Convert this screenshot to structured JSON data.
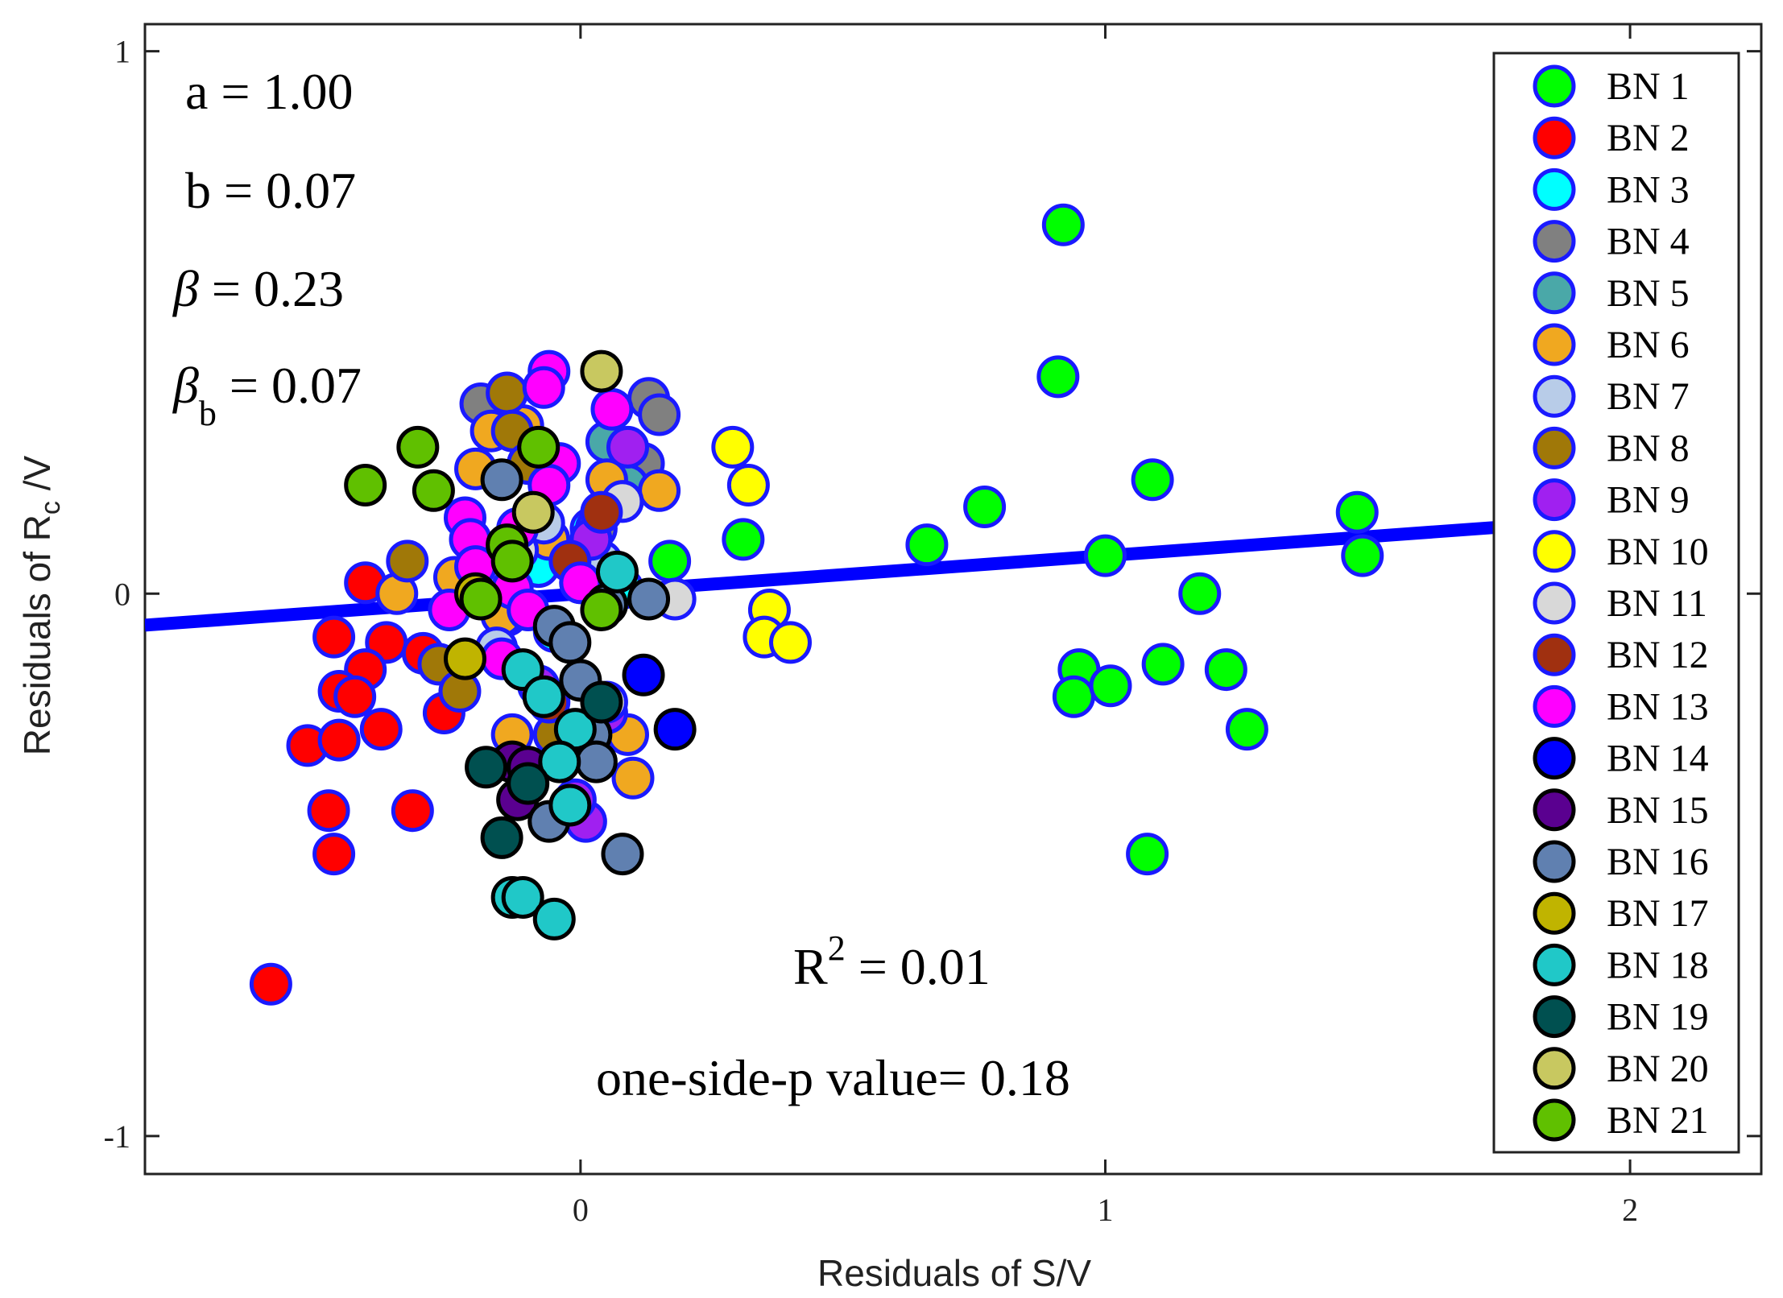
{
  "chart_data": {
    "type": "scatter",
    "xlabel": "Residuals of S/V",
    "ylabel_main": "Residuals of R",
    "ylabel_sub": "c",
    "ylabel_tail": " /V",
    "xlim": [
      -0.83,
      2.25
    ],
    "ylim": [
      -1.07,
      1.05
    ],
    "xticks": [
      0,
      1,
      2
    ],
    "xtick_labels": [
      "0",
      "1",
      "2"
    ],
    "yticks": [
      -1,
      0,
      1
    ],
    "ytick_labels": [
      "-1",
      "0",
      "1"
    ],
    "fit_line": {
      "slope": 0.07,
      "intercept": 0.0,
      "color": "#0000ff"
    },
    "annotations": {
      "a": "a = 1.00",
      "b": "b = 0.07",
      "beta_symbol": "β",
      "beta_value": " = 0.23",
      "beta_b_symbol": "β",
      "beta_b_sub": "b",
      "beta_b_value": " = 0.07",
      "r2_main": "R",
      "r2_sup": "2",
      "r2_value": " = 0.01",
      "pvalue": "one-side-p value= 0.18"
    },
    "legend_position": "right",
    "series": [
      {
        "name": "BN 1",
        "color": "#00ff00",
        "edge": "#1a1aff",
        "x": [
          0.92,
          0.91,
          1.09,
          0.77,
          0.66,
          0.31,
          1.48,
          1.49,
          1.0,
          1.18,
          0.17,
          0.95,
          0.94,
          1.01,
          1.11,
          1.23,
          1.27,
          1.08
        ],
        "y": [
          0.68,
          0.4,
          0.21,
          0.16,
          0.09,
          0.1,
          0.15,
          0.07,
          0.07,
          0.0,
          0.06,
          -0.14,
          -0.19,
          -0.17,
          -0.13,
          -0.14,
          -0.25,
          -0.48
        ]
      },
      {
        "name": "BN 2",
        "color": "#ff0000",
        "edge": "#1a1aff",
        "x": [
          -0.41,
          -0.47,
          -0.37,
          -0.41,
          -0.46,
          -0.43,
          -0.52,
          -0.46,
          -0.38,
          -0.3,
          -0.26,
          -0.48,
          -0.47,
          -0.32,
          -0.59
        ],
        "y": [
          0.02,
          -0.08,
          -0.09,
          -0.14,
          -0.18,
          -0.19,
          -0.28,
          -0.27,
          -0.25,
          -0.11,
          -0.22,
          -0.4,
          -0.48,
          -0.4,
          -0.72
        ]
      },
      {
        "name": "BN 3",
        "color": "#00ffff",
        "edge": "#1a1aff",
        "x": [
          -0.08,
          -0.05,
          0.02,
          -0.12,
          0.08
        ],
        "y": [
          0.05,
          -0.07,
          0.12,
          -0.02,
          0.01
        ]
      },
      {
        "name": "BN 4",
        "color": "#808080",
        "edge": "#1a1aff",
        "x": [
          -0.19,
          0.13,
          0.15,
          -0.06,
          0.12,
          0.03
        ],
        "y": [
          0.35,
          0.36,
          0.33,
          0.23,
          0.24,
          0.12
        ]
      },
      {
        "name": "BN 5",
        "color": "#4aa8a8",
        "edge": "#1a1aff",
        "x": [
          0.05,
          0.09,
          -0.1,
          0.0,
          -0.14
        ],
        "y": [
          0.28,
          0.2,
          0.12,
          0.02,
          -0.04
        ]
      },
      {
        "name": "BN 6",
        "color": "#f0a820",
        "edge": "#1a1aff",
        "x": [
          -0.17,
          -0.2,
          -0.11,
          0.05,
          0.08,
          0.15,
          -0.35,
          -0.24,
          -0.06,
          0.02,
          -0.15,
          -0.13,
          0.09,
          0.1
        ],
        "y": [
          0.3,
          0.23,
          0.31,
          0.21,
          0.17,
          0.19,
          0.0,
          0.03,
          0.1,
          0.02,
          -0.04,
          -0.26,
          -0.26,
          -0.34
        ]
      },
      {
        "name": "BN 7",
        "color": "#b8cce8",
        "edge": "#1a1aff",
        "x": [
          -0.07,
          0.04,
          -0.16
        ],
        "y": [
          0.13,
          0.06,
          -0.1
        ]
      },
      {
        "name": "BN 8",
        "color": "#a07808",
        "edge": "#1a1aff",
        "x": [
          -0.14,
          -0.13,
          -0.33,
          -0.1,
          -0.27,
          -0.23,
          -0.05
        ],
        "y": [
          0.37,
          0.3,
          0.06,
          0.24,
          -0.13,
          -0.18,
          -0.26
        ]
      },
      {
        "name": "BN 9",
        "color": "#a020f0",
        "edge": "#1a1aff",
        "x": [
          0.09,
          0.02,
          -0.08,
          0.05,
          0.01,
          -0.01
        ],
        "y": [
          0.27,
          0.1,
          -0.17,
          -0.22,
          -0.42,
          -0.38
        ]
      },
      {
        "name": "BN 10",
        "color": "#ffff00",
        "edge": "#1a1aff",
        "x": [
          0.29,
          0.32,
          0.36,
          0.35,
          0.4
        ],
        "y": [
          0.27,
          0.2,
          -0.03,
          -0.08,
          -0.09
        ]
      },
      {
        "name": "BN 11",
        "color": "#d8d8d8",
        "edge": "#1a1aff",
        "x": [
          0.08,
          0.18,
          -0.12,
          0.05
        ],
        "y": [
          0.17,
          -0.01,
          0.08,
          -0.2
        ]
      },
      {
        "name": "BN 12",
        "color": "#a03010",
        "edge": "#1a1aff",
        "x": [
          0.04,
          -0.02,
          -0.06
        ],
        "y": [
          0.15,
          0.06,
          -0.2
        ]
      },
      {
        "name": "BN 13",
        "color": "#ff00ff",
        "edge": "#1a1aff",
        "x": [
          -0.06,
          -0.07,
          0.06,
          -0.04,
          -0.22,
          -0.21,
          -0.2,
          -0.06,
          -0.12,
          -0.13,
          0.0,
          -0.1,
          -0.25,
          -0.15
        ],
        "y": [
          0.41,
          0.38,
          0.34,
          0.24,
          0.14,
          0.1,
          0.05,
          0.2,
          0.12,
          0.01,
          0.02,
          -0.03,
          -0.03,
          -0.12
        ]
      },
      {
        "name": "BN 14",
        "color": "#0000ff",
        "edge": "#000000",
        "x": [
          0.12,
          0.18
        ],
        "y": [
          -0.15,
          -0.25
        ]
      },
      {
        "name": "BN 15",
        "color": "#5a0090",
        "edge": "#000000",
        "x": [
          -0.13,
          -0.1,
          -0.12
        ],
        "y": [
          -0.31,
          -0.32,
          -0.38
        ]
      },
      {
        "name": "BN 16",
        "color": "#6080b0",
        "edge": "#000000",
        "x": [
          -0.15,
          0.13,
          -0.05,
          0.05,
          0.0,
          0.02,
          0.03,
          0.08,
          -0.06,
          -0.02
        ],
        "y": [
          0.21,
          -0.01,
          -0.06,
          -0.02,
          -0.16,
          -0.26,
          -0.31,
          -0.48,
          -0.42,
          -0.09
        ]
      },
      {
        "name": "BN 17",
        "color": "#c0b400",
        "edge": "#000000",
        "x": [
          -0.22,
          -0.2
        ],
        "y": [
          -0.12,
          0.0
        ]
      },
      {
        "name": "BN 18",
        "color": "#20c8c8",
        "edge": "#000000",
        "x": [
          0.07,
          -0.11,
          -0.07,
          -0.01,
          -0.04,
          -0.02,
          -0.13,
          -0.11,
          -0.05
        ],
        "y": [
          0.04,
          -0.14,
          -0.19,
          -0.25,
          -0.31,
          -0.39,
          -0.56,
          -0.56,
          -0.6
        ]
      },
      {
        "name": "BN 19",
        "color": "#005050",
        "edge": "#000000",
        "x": [
          -0.18,
          -0.1,
          -0.15,
          0.04
        ],
        "y": [
          -0.32,
          -0.35,
          -0.45,
          -0.2
        ]
      },
      {
        "name": "BN 20",
        "color": "#c8c860",
        "edge": "#000000",
        "x": [
          0.04,
          -0.09
        ],
        "y": [
          0.41,
          0.15
        ]
      },
      {
        "name": "BN 21",
        "color": "#60c000",
        "edge": "#000000",
        "x": [
          -0.31,
          -0.41,
          -0.28,
          -0.08,
          -0.14,
          -0.13,
          -0.19,
          0.04
        ],
        "y": [
          0.27,
          0.2,
          0.19,
          0.27,
          0.09,
          0.06,
          -0.01,
          -0.03
        ]
      }
    ]
  }
}
